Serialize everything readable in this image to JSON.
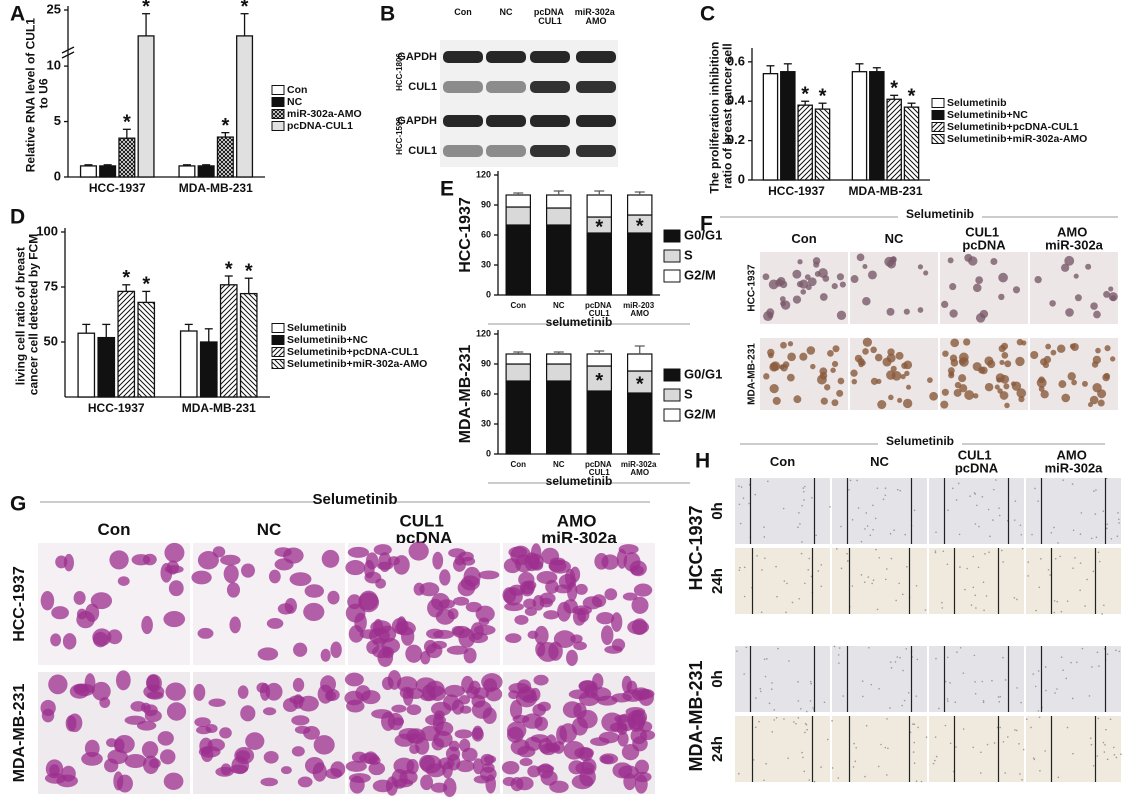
{
  "figure": {
    "panel_labels": [
      "A",
      "B",
      "C",
      "D",
      "E",
      "F",
      "G",
      "H"
    ],
    "blot": {
      "columns": [
        "Con",
        "NC",
        "pcDNA CUL1",
        "miR-302a AMO"
      ],
      "rows": [
        "GAPDH",
        "CUL1",
        "GAPDH",
        "CUL1"
      ],
      "groups": [
        "HCC-1806",
        "HCC-1599"
      ]
    },
    "cell_images": {
      "header": "Selumetinib",
      "columns": [
        "Con",
        "NC",
        "CUL1 pcDNA",
        "AMO miR-302a"
      ],
      "rows": [
        "HCC-1937",
        "MDA-MB-231"
      ]
    },
    "transwell": {
      "header": "Selumetinib",
      "columns": [
        "Con",
        "NC",
        "CUL1 pcDNA",
        "AMO miR-302a"
      ],
      "rows": [
        "HCC-1937",
        "MDA-MB-231"
      ]
    },
    "wound": {
      "header": "Selumetinib",
      "columns": [
        "Con",
        "NC",
        "CUL1 pcDNA",
        "AMO miR-302a"
      ],
      "rows": [
        "HCC-1937",
        "MDA-MB-231"
      ],
      "times": [
        "0h",
        "24h"
      ]
    }
  },
  "chart_data": [
    {
      "type": "bar",
      "ylabel": "Relative RNA level of CUL1 to U6",
      "categories": [
        "HCC-1937",
        "MDA-MB-231"
      ],
      "ylim": [
        0,
        25
      ],
      "yticks": [
        0,
        5,
        10,
        25
      ],
      "axis_break": [
        11,
        20
      ],
      "legend": "right",
      "series": [
        {
          "name": "Con",
          "color": "#ffffff",
          "values": [
            1,
            1
          ],
          "errors": [
            0.1,
            0.1
          ]
        },
        {
          "name": "NC",
          "color": "#111111",
          "values": [
            1,
            1
          ],
          "errors": [
            0.1,
            0.1
          ]
        },
        {
          "name": "miR-302a-AMO",
          "color": "#ffffff",
          "hatch": "crosshatch",
          "values": [
            3.5,
            3.6
          ],
          "errors": [
            0.8,
            0.4
          ]
        },
        {
          "name": "pcDNA-CUL1",
          "color": "#e0e0e0",
          "values": [
            21.5,
            21.5
          ],
          "errors": [
            3,
            3
          ]
        }
      ],
      "annotations": [
        {
          "text": "*",
          "series": 2,
          "category": 0
        },
        {
          "text": "*",
          "series": 3,
          "category": 0
        },
        {
          "text": "*",
          "series": 2,
          "category": 1
        },
        {
          "text": "*",
          "series": 3,
          "category": 1
        }
      ]
    },
    {
      "type": "bar",
      "ylabel": "The proliferation inhibition ratio of breast cancer cell",
      "categories": [
        "HCC-1937",
        "MDA-MB-231"
      ],
      "ylim": [
        0,
        0.65
      ],
      "yticks": [
        0,
        0.2,
        0.4,
        0.6
      ],
      "legend": "right",
      "series": [
        {
          "name": "Selumetinib",
          "color": "#ffffff",
          "values": [
            0.54,
            0.55
          ],
          "errors": [
            0.04,
            0.04
          ]
        },
        {
          "name": "Selumetinib+NC",
          "color": "#111111",
          "values": [
            0.55,
            0.55
          ],
          "errors": [
            0.04,
            0.02
          ]
        },
        {
          "name": "Selumetinib+pcDNA-CUL1",
          "color": "#ffffff",
          "hatch": "hatch",
          "values": [
            0.38,
            0.41
          ],
          "errors": [
            0.02,
            0.02
          ]
        },
        {
          "name": "Selumetinib+miR-302a-AMO",
          "color": "#ffffff",
          "hatch": "backhatch",
          "values": [
            0.36,
            0.37
          ],
          "errors": [
            0.03,
            0.02
          ]
        }
      ],
      "annotations": [
        {
          "text": "*",
          "series": 2,
          "category": 0
        },
        {
          "text": "*",
          "series": 3,
          "category": 0
        },
        {
          "text": "*",
          "series": 2,
          "category": 1
        },
        {
          "text": "*",
          "series": 3,
          "category": 1
        }
      ]
    },
    {
      "type": "bar",
      "ylabel": "living cell ratio of breast cancer cell detected by FCM",
      "categories": [
        "HCC-1937",
        "MDA-MB-231"
      ],
      "ylim": [
        25,
        100
      ],
      "yticks": [
        50,
        75,
        100
      ],
      "legend": "right",
      "series": [
        {
          "name": "Selumetinib",
          "color": "#ffffff",
          "values": [
            54,
            55
          ],
          "errors": [
            4,
            3
          ]
        },
        {
          "name": "Selumetinib+NC",
          "color": "#111111",
          "values": [
            52,
            50
          ],
          "errors": [
            6,
            6
          ]
        },
        {
          "name": "Selumetinib+pcDNA-CUL1",
          "color": "#ffffff",
          "hatch": "hatch",
          "values": [
            73,
            76
          ],
          "errors": [
            3,
            4
          ]
        },
        {
          "name": "Selumetinib+miR-302a-AMO",
          "color": "#ffffff",
          "hatch": "backhatch",
          "values": [
            68,
            72
          ],
          "errors": [
            5,
            7
          ]
        }
      ],
      "annotations": [
        {
          "text": "*",
          "series": 2,
          "category": 0
        },
        {
          "text": "*",
          "series": 3,
          "category": 0
        },
        {
          "text": "*",
          "series": 2,
          "category": 1
        },
        {
          "text": "*",
          "series": 3,
          "category": 1
        }
      ]
    },
    {
      "type": "stacked_bar",
      "ylabel": "HCC-1937",
      "xlabel": "selumetinib",
      "categories": [
        "Con",
        "NC",
        "pcDNA CUL1",
        "miR-203 AMO"
      ],
      "ylim": [
        0,
        120
      ],
      "yticks": [
        0,
        30,
        60,
        90,
        120
      ],
      "legend": "right",
      "series": [
        {
          "name": "G0/G1",
          "color": "#111111",
          "values": [
            70,
            70,
            62,
            62
          ],
          "errors": [
            3,
            3,
            4,
            4
          ]
        },
        {
          "name": "S",
          "color": "#d9d9d9",
          "values": [
            18,
            17,
            16,
            18
          ],
          "errors": [
            2,
            2,
            3,
            3
          ]
        },
        {
          "name": "G2/M",
          "color": "#ffffff",
          "values": [
            12,
            13,
            22,
            20
          ],
          "errors": [
            2,
            4,
            4,
            3
          ]
        }
      ],
      "annotations": [
        {
          "text": "*",
          "series": 1,
          "category": 2
        },
        {
          "text": "*",
          "series": 1,
          "category": 3
        }
      ]
    },
    {
      "type": "stacked_bar",
      "ylabel": "MDA-MB-231",
      "xlabel": "selumetinib",
      "categories": [
        "Con",
        "NC",
        "pcDNA CUL1",
        "miR-302a AMO"
      ],
      "ylim": [
        0,
        120
      ],
      "yticks": [
        0,
        30,
        60,
        90,
        120
      ],
      "legend": "right",
      "series": [
        {
          "name": "G0/G1",
          "color": "#111111",
          "values": [
            73,
            73,
            63,
            61
          ],
          "errors": [
            2,
            2,
            3,
            3
          ]
        },
        {
          "name": "S",
          "color": "#d9d9d9",
          "values": [
            17,
            17,
            25,
            22
          ],
          "errors": [
            2,
            2,
            3,
            3
          ]
        },
        {
          "name": "G2/M",
          "color": "#ffffff",
          "values": [
            10,
            10,
            12,
            17
          ],
          "errors": [
            2,
            2,
            3,
            8
          ]
        }
      ],
      "annotations": [
        {
          "text": "*",
          "series": 1,
          "category": 2
        },
        {
          "text": "*",
          "series": 1,
          "category": 3
        }
      ]
    }
  ]
}
